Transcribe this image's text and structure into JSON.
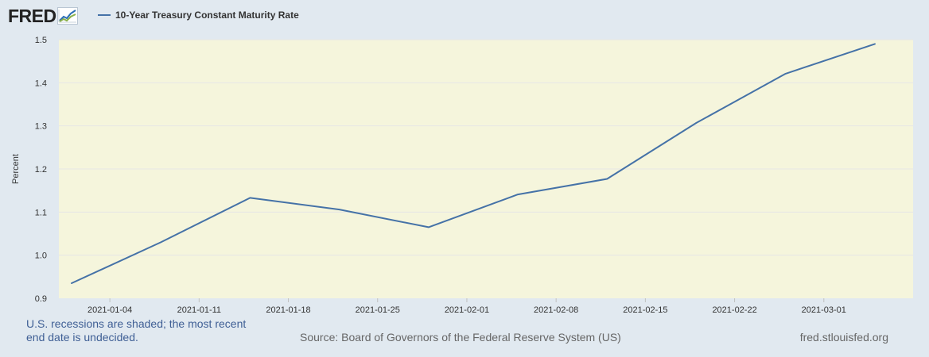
{
  "brand": {
    "logo_text": "FRED",
    "logo_icon": "trend-graph-icon",
    "logo_colors": [
      "#2a6db5",
      "#8ab04a"
    ]
  },
  "colors": {
    "background": "#e1e9f0",
    "plot_background": "#f5f5dc",
    "series_line": "#4572a7",
    "grid": "#e6e6e6",
    "tick_text": "#333333"
  },
  "chart_data": {
    "type": "line",
    "title": "",
    "xlabel": "",
    "ylabel": "Percent",
    "ylim": [
      0.9,
      1.5
    ],
    "xlim": [
      "2020-12-31",
      "2021-03-08"
    ],
    "grid": "horizontal",
    "legend_position": "top-left",
    "yticks": [
      "0.9",
      "1.0",
      "1.1",
      "1.2",
      "1.3",
      "1.4",
      "1.5"
    ],
    "xticks": [
      "2021-01-04",
      "2021-01-11",
      "2021-01-18",
      "2021-01-25",
      "2021-02-01",
      "2021-02-08",
      "2021-02-15",
      "2021-02-22",
      "2021-03-01"
    ],
    "series": [
      {
        "name": "10-Year Treasury Constant Maturity Rate",
        "color": "#4572a7",
        "x": [
          "2021-01-01",
          "2021-01-08",
          "2021-01-15",
          "2021-01-22",
          "2021-01-29",
          "2021-02-05",
          "2021-02-12",
          "2021-02-19",
          "2021-02-26",
          "2021-03-05"
        ],
        "values": [
          0.935,
          1.03,
          1.133,
          1.106,
          1.065,
          1.141,
          1.177,
          1.307,
          1.421,
          1.49
        ]
      }
    ]
  },
  "footer": {
    "recession_note": "U.S. recessions are shaded; the most recent end date is undecided.",
    "source": "Source: Board of Governors of the Federal Reserve System (US)",
    "site": "fred.stlouisfed.org"
  }
}
